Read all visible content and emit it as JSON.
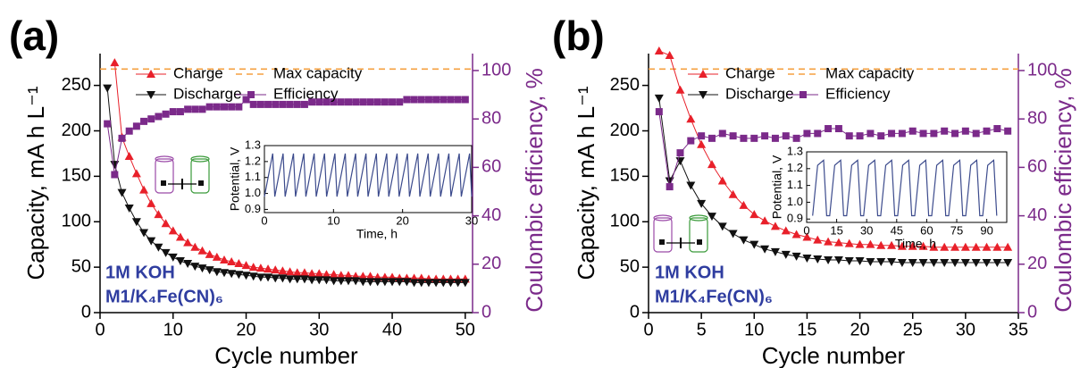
{
  "chart_data": [
    {
      "type": "line",
      "panel_label": "(a)",
      "xlabel": "Cycle number",
      "ylabel": "Capacity, mA h L⁻¹",
      "y2label": "Coulombic efficiency, %",
      "xlim": [
        0,
        51
      ],
      "xticks": [
        0,
        10,
        20,
        30,
        40,
        50
      ],
      "ylim": [
        0,
        285
      ],
      "yticks": [
        0,
        50,
        100,
        150,
        200,
        250
      ],
      "y2lim": [
        0,
        107
      ],
      "y2ticks": [
        0,
        20,
        40,
        60,
        80,
        100
      ],
      "series": [
        {
          "name": "Charge",
          "color": "#e8202a",
          "marker": "triangle-up",
          "x": [
            2,
            3,
            4,
            5,
            6,
            7,
            8,
            9,
            10,
            11,
            12,
            13,
            14,
            15,
            16,
            17,
            18,
            19,
            20,
            21,
            22,
            23,
            24,
            25,
            26,
            27,
            28,
            29,
            30,
            31,
            32,
            33,
            34,
            35,
            36,
            37,
            38,
            39,
            40,
            41,
            42,
            43,
            44,
            45,
            46,
            47,
            48,
            49,
            50
          ],
          "values": [
            275,
            193,
            172,
            153,
            135,
            120,
            108,
            98,
            90,
            83,
            77,
            72,
            68,
            64,
            61,
            58,
            56,
            54,
            52,
            50,
            49,
            48,
            47,
            46,
            45,
            44,
            44,
            43,
            43,
            42,
            42,
            41,
            41,
            40,
            40,
            40,
            39,
            39,
            39,
            38,
            38,
            38,
            38,
            37,
            37,
            37,
            37,
            37,
            37
          ]
        },
        {
          "name": "Discharge",
          "color": "#111111",
          "marker": "triangle-down",
          "x": [
            1,
            2,
            3,
            4,
            5,
            6,
            7,
            8,
            9,
            10,
            11,
            12,
            13,
            14,
            15,
            16,
            17,
            18,
            19,
            20,
            21,
            22,
            23,
            24,
            25,
            26,
            27,
            28,
            29,
            30,
            31,
            32,
            33,
            34,
            35,
            36,
            37,
            38,
            39,
            40,
            41,
            42,
            43,
            44,
            45,
            46,
            47,
            48,
            49,
            50
          ],
          "values": [
            247,
            163,
            132,
            115,
            100,
            88,
            79,
            72,
            66,
            61,
            57,
            54,
            51,
            49,
            47,
            45,
            44,
            43,
            42,
            41,
            40,
            39,
            39,
            38,
            38,
            37,
            37,
            37,
            36,
            36,
            36,
            35,
            35,
            35,
            35,
            34,
            34,
            34,
            34,
            34,
            34,
            34,
            33,
            33,
            33,
            33,
            33,
            33,
            33,
            33
          ]
        },
        {
          "name": "Efficiency",
          "color": "#7b2a8a",
          "marker": "square",
          "axis": "y2",
          "x": [
            1,
            2,
            3,
            4,
            5,
            6,
            7,
            8,
            9,
            10,
            11,
            12,
            13,
            14,
            15,
            16,
            17,
            18,
            19,
            20,
            21,
            22,
            23,
            24,
            25,
            26,
            27,
            28,
            29,
            30,
            31,
            32,
            33,
            34,
            35,
            36,
            37,
            38,
            39,
            40,
            41,
            42,
            43,
            44,
            45,
            46,
            47,
            48,
            49,
            50
          ],
          "values": [
            78,
            57,
            72,
            75,
            77,
            79,
            80,
            81,
            82,
            83,
            83,
            84,
            84,
            84,
            85,
            85,
            85,
            85,
            85,
            88,
            86,
            86,
            86,
            86,
            86,
            86,
            86,
            86,
            87,
            87,
            87,
            87,
            87,
            87,
            87,
            87,
            87,
            87,
            87,
            87,
            87,
            88,
            88,
            88,
            88,
            88,
            88,
            88,
            88,
            88
          ]
        }
      ],
      "reference_line": {
        "name": "Max capacity",
        "value": 268,
        "color": "#f5a040"
      },
      "annotations": [
        "1M KOH",
        "M1/K₄Fe(CN)₆"
      ],
      "inset": {
        "xlabel": "Time, h",
        "ylabel": "Potential, V",
        "color": "#3b4a8c",
        "xlim": [
          0,
          30
        ],
        "xticks": [
          0,
          10,
          20,
          30
        ],
        "ylim": [
          0.88,
          1.3
        ],
        "yticks": [
          0.9,
          {
            "value": 1,
            "label": "1.0"
          },
          1.1,
          1.2,
          1.3
        ],
        "x": [
          0,
          1.2,
          1.5,
          2.7,
          3,
          4.2,
          4.5,
          5.7,
          6,
          7.2,
          7.5,
          8.7,
          9,
          10.2,
          10.5,
          11.7,
          12,
          13.2,
          13.5,
          14.7,
          15,
          16.2,
          16.5,
          17.7,
          18,
          19.2,
          19.5,
          20.7,
          21,
          22.2,
          22.5,
          23.7,
          24,
          25.2,
          25.5,
          26.7,
          27,
          28.2,
          28.5,
          29.7,
          30
        ],
        "values": [
          0.98,
          1.25,
          0.98,
          1.25,
          0.98,
          1.25,
          0.98,
          1.25,
          0.98,
          1.25,
          0.98,
          1.25,
          0.98,
          1.25,
          0.98,
          1.25,
          0.98,
          1.25,
          0.98,
          1.25,
          0.98,
          1.25,
          0.98,
          1.25,
          0.98,
          1.25,
          0.98,
          1.25,
          0.98,
          1.25,
          0.98,
          1.25,
          0.98,
          1.25,
          0.98,
          1.25,
          0.98,
          1.25,
          0.98,
          1.25,
          0.98
        ]
      }
    },
    {
      "type": "line",
      "panel_label": "(b)",
      "xlabel": "Cycle number",
      "ylabel": "Capacity, mA h L⁻¹",
      "y2label": "Coulombic efficiency, %",
      "xlim": [
        0,
        35
      ],
      "xticks": [
        0,
        5,
        10,
        15,
        20,
        25,
        30,
        35
      ],
      "ylim": [
        0,
        285
      ],
      "yticks": [
        0,
        50,
        100,
        150,
        200,
        250
      ],
      "y2lim": [
        0,
        107
      ],
      "y2ticks": [
        0,
        20,
        40,
        60,
        80,
        100
      ],
      "series": [
        {
          "name": "Charge",
          "color": "#e8202a",
          "marker": "triangle-up",
          "x": [
            1,
            2,
            3,
            4,
            5,
            6,
            7,
            8,
            9,
            10,
            11,
            12,
            13,
            14,
            15,
            16,
            17,
            18,
            19,
            20,
            21,
            22,
            23,
            24,
            25,
            26,
            27,
            28,
            29,
            30,
            31,
            32,
            33,
            34
          ],
          "values": [
            288,
            283,
            245,
            213,
            185,
            163,
            145,
            130,
            118,
            108,
            101,
            95,
            90,
            86,
            83,
            80,
            78,
            77,
            76,
            75,
            75,
            74,
            74,
            73,
            73,
            73,
            72,
            72,
            72,
            72,
            72,
            72,
            72,
            72
          ]
        },
        {
          "name": "Discharge",
          "color": "#111111",
          "marker": "triangle-down",
          "x": [
            1,
            2,
            3,
            4,
            5,
            6,
            7,
            8,
            9,
            10,
            11,
            12,
            13,
            14,
            15,
            16,
            17,
            18,
            19,
            20,
            21,
            22,
            23,
            24,
            25,
            26,
            27,
            28,
            29,
            30,
            31,
            32,
            33,
            34
          ],
          "values": [
            236,
            145,
            167,
            140,
            120,
            106,
            95,
            87,
            80,
            75,
            70,
            67,
            64,
            62,
            60,
            59,
            58,
            58,
            57,
            57,
            56,
            56,
            56,
            55,
            55,
            55,
            55,
            55,
            55,
            55,
            55,
            55,
            55,
            55
          ]
        },
        {
          "name": "Efficiency",
          "color": "#7b2a8a",
          "marker": "square",
          "axis": "y2",
          "x": [
            1,
            2,
            3,
            4,
            5,
            6,
            7,
            8,
            9,
            10,
            11,
            12,
            13,
            14,
            15,
            16,
            17,
            18,
            19,
            20,
            21,
            22,
            23,
            24,
            25,
            26,
            27,
            28,
            29,
            30,
            31,
            32,
            33,
            34
          ],
          "values": [
            83,
            52,
            66,
            71,
            73,
            72,
            74,
            73,
            72,
            72,
            73,
            72,
            73,
            72,
            74,
            74,
            76,
            76,
            73,
            73,
            74,
            73,
            74,
            74,
            75,
            74,
            74,
            75,
            74,
            75,
            74,
            75,
            76,
            75
          ]
        }
      ],
      "reference_line": {
        "name": "Max capacity",
        "value": 268,
        "color": "#f5a040"
      },
      "annotations": [
        "1M KOH",
        "M1/K₄Fe(CN)₆"
      ],
      "inset": {
        "xlabel": "Time, h",
        "ylabel": "Potential, V",
        "color": "#3b4a8c",
        "xlim": [
          0,
          100
        ],
        "xticks": [
          0,
          15,
          30,
          45,
          60,
          75,
          90
        ],
        "ylim": [
          0.88,
          1.3
        ],
        "yticks": [
          0.9,
          {
            "value": 1,
            "label": "1.0"
          },
          1.1,
          1.2,
          1.3
        ],
        "x": [
          3,
          5.5,
          8.5,
          10,
          11.5,
          14,
          17,
          18.5,
          20,
          22.5,
          25.5,
          27,
          28.5,
          31,
          34,
          35.5,
          37,
          39.5,
          42.5,
          44,
          45.5,
          48,
          51,
          52.5,
          54,
          56.5,
          59.5,
          61,
          62.5,
          65,
          68,
          69.5,
          71,
          73.5,
          76.5,
          78,
          79.5,
          82,
          85,
          86.5,
          88,
          90.5,
          93.5,
          95
        ],
        "values": [
          0.92,
          1.22,
          1.25,
          0.92,
          0.92,
          1.22,
          1.25,
          0.92,
          0.92,
          1.22,
          1.25,
          0.92,
          0.92,
          1.22,
          1.25,
          0.92,
          0.92,
          1.22,
          1.25,
          0.92,
          0.92,
          1.22,
          1.25,
          0.92,
          0.92,
          1.22,
          1.25,
          0.92,
          0.92,
          1.22,
          1.25,
          0.92,
          0.92,
          1.22,
          1.25,
          0.92,
          0.92,
          1.22,
          1.25,
          0.92,
          0.92,
          1.22,
          1.25,
          0.92
        ]
      }
    }
  ]
}
